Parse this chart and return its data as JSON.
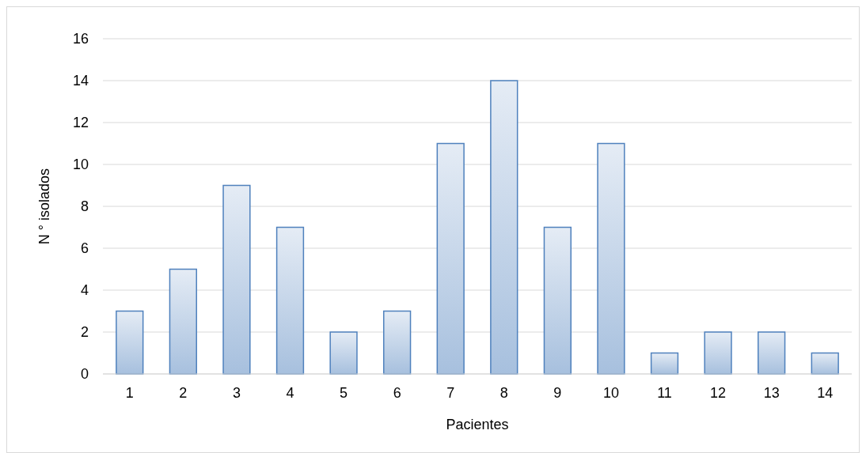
{
  "chart_data": {
    "type": "bar",
    "xlabel": "Pacientes",
    "ylabel": "N ° isolados",
    "categories": [
      "1",
      "2",
      "3",
      "4",
      "5",
      "6",
      "7",
      "8",
      "9",
      "10",
      "11",
      "12",
      "13",
      "14"
    ],
    "values": [
      3,
      5,
      9,
      7,
      2,
      3,
      11,
      14,
      7,
      11,
      1,
      2,
      2,
      1
    ],
    "color": "#4f81bd",
    "ylim": [
      0,
      16
    ],
    "yticks": [
      0,
      2,
      4,
      6,
      8,
      10,
      12,
      14,
      16
    ],
    "grid": "y"
  }
}
